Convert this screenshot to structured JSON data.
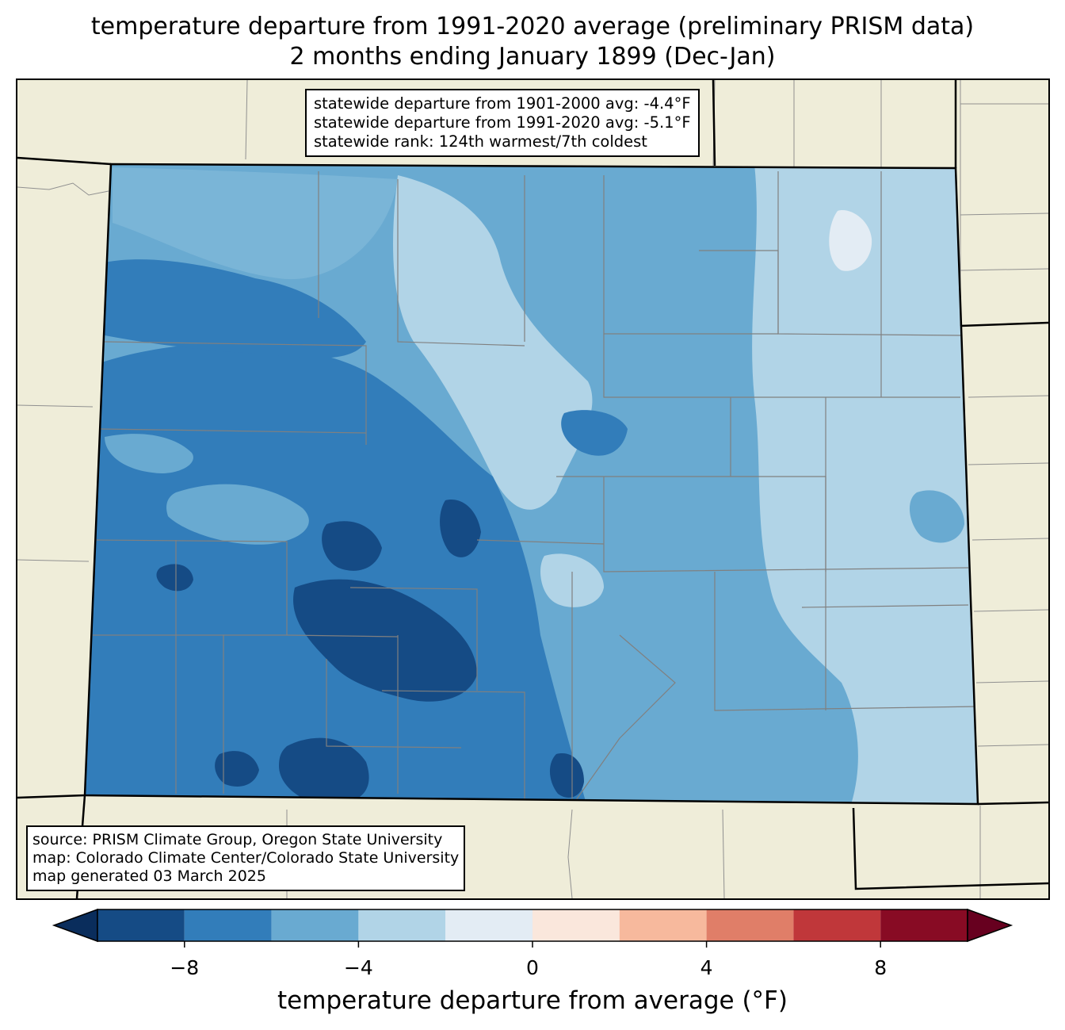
{
  "title_line1": "temperature departure from 1991-2020 average (preliminary PRISM data)",
  "title_line2": "2 months ending January 1899 (Dec-Jan)",
  "stats": {
    "line1": "statewide departure from 1901-2000 avg: -4.4°F",
    "line2": "statewide departure from 1991-2020 avg: -5.1°F",
    "line3": "statewide rank: 124th warmest/7th coldest"
  },
  "credits": {
    "line1": "source: PRISM Climate Group, Oregon State University",
    "line2": "map: Colorado Climate Center/Colorado State University",
    "line3": "map generated 03 March 2025"
  },
  "colorbar": {
    "label": "temperature departure from average (°F)",
    "bins": [
      {
        "from": -10,
        "to": -8,
        "color": "#154b85"
      },
      {
        "from": -8,
        "to": -6,
        "color": "#327dba"
      },
      {
        "from": -6,
        "to": -4,
        "color": "#69aad1"
      },
      {
        "from": -4,
        "to": -2,
        "color": "#b1d4e7"
      },
      {
        "from": -2,
        "to": 0,
        "color": "#e3ecf4"
      },
      {
        "from": 0,
        "to": 2,
        "color": "#fae7dc"
      },
      {
        "from": 2,
        "to": 4,
        "color": "#f7b99d"
      },
      {
        "from": 4,
        "to": 6,
        "color": "#e07e68"
      },
      {
        "from": 6,
        "to": 8,
        "color": "#c0373a"
      },
      {
        "from": 8,
        "to": 10,
        "color": "#880b24"
      }
    ],
    "under_color": "#0a2d5c",
    "over_color": "#67001f",
    "ticks": [
      {
        "value": -8,
        "label": "−8"
      },
      {
        "value": -4,
        "label": "−4"
      },
      {
        "value": 0,
        "label": "0"
      },
      {
        "value": 4,
        "label": "4"
      },
      {
        "value": 8,
        "label": "8"
      }
    ]
  },
  "map": {
    "land_color": "#efedd9",
    "county_line_color": "#808080",
    "state_line_color": "#000000"
  }
}
